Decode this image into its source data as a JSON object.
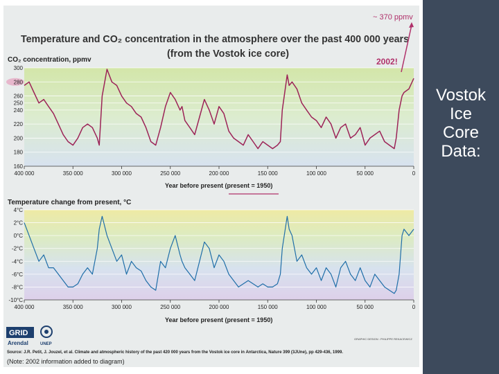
{
  "slide": {
    "side_lines": [
      "Vostok",
      "Ice",
      "Core",
      "Data:"
    ]
  },
  "figure": {
    "title_line1": "Temperature and CO₂ concentration in the atmosphere over the past 400 000 years",
    "title_line2": "(from the Vostok ice core)",
    "annotation_ppmv": "~ 370 ppmv",
    "annotation_2002": "2002!",
    "source_line": "Source: J.R. Petit, J. Jouzel, et al. Climate and atmospheric history of the past 420 000 years from the Vostok ice core in Antarctica, Nature 399 (3JUne), pp 429-436, 1999.",
    "note_line": "(Note: 2002 information added to diagram)",
    "credit": "GRAPHIC DESIGN : PHILIPPE REKACEWICZ",
    "logo_grid": "GRID",
    "logo_arendal": "Arendal",
    "logo_unep": "UNEP",
    "colors": {
      "co2_line": "#9c2357",
      "temp_line": "#1f6ea8",
      "arrow": "#b0306a",
      "panel_bg": "#e9ecec",
      "side_bg": "#3d4a5c",
      "side_text": "#ffffff"
    }
  },
  "chart_data": [
    {
      "type": "line",
      "title": "",
      "ylabel": "CO₂ concentration, ppmv",
      "xlabel": "Year before present (present = 1950)",
      "xlim": [
        400000,
        0
      ],
      "ylim": [
        160,
        300
      ],
      "xticks": [
        400000,
        350000,
        300000,
        250000,
        200000,
        150000,
        100000,
        50000,
        0
      ],
      "xtick_labels": [
        "400 000",
        "350 000",
        "300 000",
        "250 000",
        "200 000",
        "150 000",
        "100 000",
        "50 000",
        "0"
      ],
      "yticks": [
        160,
        180,
        200,
        220,
        240,
        250,
        260,
        280,
        300
      ],
      "ytick_labels": [
        "160",
        "180",
        "200",
        "220",
        "240",
        "250",
        "260",
        "280",
        "300"
      ],
      "highlight_tick": "280",
      "series": [
        {
          "x": [
            400000,
            395000,
            390000,
            385000,
            380000,
            375000,
            370000,
            365000,
            360000,
            355000,
            350000,
            345000,
            340000,
            335000,
            330000,
            325000,
            323000,
            320000,
            315000,
            310000,
            305000,
            300000,
            295000,
            290000,
            285000,
            280000,
            275000,
            270000,
            265000,
            260000,
            255000,
            250000,
            245000,
            240000,
            238000,
            235000,
            230000,
            225000,
            220000,
            215000,
            210000,
            205000,
            200000,
            195000,
            190000,
            185000,
            180000,
            175000,
            170000,
            165000,
            160000,
            155000,
            150000,
            145000,
            140000,
            137000,
            135000,
            130000,
            128000,
            125000,
            120000,
            115000,
            110000,
            105000,
            100000,
            95000,
            90000,
            85000,
            80000,
            75000,
            70000,
            65000,
            60000,
            55000,
            50000,
            45000,
            40000,
            35000,
            30000,
            25000,
            20000,
            18000,
            15000,
            12000,
            10000,
            5000,
            0
          ],
          "y": [
            275,
            280,
            265,
            250,
            255,
            245,
            235,
            220,
            205,
            195,
            190,
            200,
            215,
            220,
            215,
            200,
            190,
            260,
            298,
            280,
            275,
            260,
            250,
            245,
            235,
            230,
            215,
            195,
            190,
            215,
            245,
            265,
            255,
            240,
            245,
            225,
            215,
            205,
            230,
            255,
            240,
            220,
            245,
            235,
            210,
            200,
            195,
            190,
            205,
            195,
            185,
            195,
            190,
            185,
            190,
            195,
            240,
            290,
            275,
            280,
            270,
            250,
            240,
            230,
            225,
            215,
            230,
            220,
            200,
            215,
            220,
            200,
            205,
            215,
            190,
            200,
            205,
            210,
            195,
            190,
            185,
            200,
            240,
            260,
            265,
            270,
            285
          ]
        }
      ]
    },
    {
      "type": "line",
      "title": "",
      "ylabel": "Temperature change from present, °C",
      "xlabel": "Year before present (present = 1950)",
      "xlim": [
        400000,
        0
      ],
      "ylim": [
        -10,
        4
      ],
      "xticks": [
        400000,
        350000,
        300000,
        250000,
        200000,
        150000,
        100000,
        50000,
        0
      ],
      "xtick_labels": [
        "400 000",
        "350 000",
        "300 000",
        "250 000",
        "200 000",
        "150 000",
        "100 000",
        "50 000",
        "0"
      ],
      "yticks": [
        4,
        2,
        0,
        -2,
        -4,
        -6,
        -8,
        -10
      ],
      "ytick_labels": [
        "4°C",
        "2°C",
        "0°C",
        "-2°C",
        "-4°C",
        "-6°C",
        "-8°C",
        "-10°C"
      ],
      "series": [
        {
          "x": [
            400000,
            395000,
            390000,
            385000,
            380000,
            375000,
            370000,
            365000,
            360000,
            355000,
            350000,
            345000,
            340000,
            335000,
            330000,
            325000,
            323000,
            320000,
            315000,
            310000,
            305000,
            300000,
            295000,
            290000,
            285000,
            280000,
            275000,
            270000,
            265000,
            260000,
            255000,
            250000,
            245000,
            240000,
            238000,
            235000,
            230000,
            225000,
            220000,
            215000,
            210000,
            205000,
            200000,
            195000,
            190000,
            185000,
            180000,
            175000,
            170000,
            165000,
            160000,
            155000,
            150000,
            145000,
            140000,
            137000,
            135000,
            130000,
            128000,
            125000,
            120000,
            115000,
            110000,
            105000,
            100000,
            95000,
            90000,
            85000,
            80000,
            75000,
            70000,
            65000,
            60000,
            55000,
            50000,
            45000,
            40000,
            35000,
            30000,
            25000,
            20000,
            18000,
            15000,
            12000,
            10000,
            5000,
            0
          ],
          "y": [
            2,
            0,
            -2,
            -4,
            -3,
            -5,
            -5,
            -6,
            -7,
            -8,
            -8,
            -7.5,
            -6,
            -5,
            -6,
            -2,
            1,
            3,
            0,
            -2,
            -4,
            -3,
            -6,
            -4,
            -5,
            -5.5,
            -7,
            -8,
            -8.5,
            -4,
            -5,
            -2,
            0,
            -3,
            -4,
            -5,
            -6,
            -7,
            -4,
            -1,
            -2,
            -5,
            -3,
            -4,
            -6,
            -7,
            -8,
            -7.5,
            -7,
            -7.5,
            -8,
            -7.5,
            -8,
            -8,
            -7.5,
            -6,
            -2,
            3,
            1,
            0,
            -4,
            -3,
            -5,
            -6,
            -5,
            -7,
            -5,
            -6,
            -8,
            -5,
            -4,
            -6,
            -7,
            -5,
            -7,
            -8,
            -6,
            -7,
            -8,
            -8.5,
            -9,
            -8.5,
            -6,
            0,
            1,
            0,
            1
          ]
        }
      ]
    }
  ]
}
